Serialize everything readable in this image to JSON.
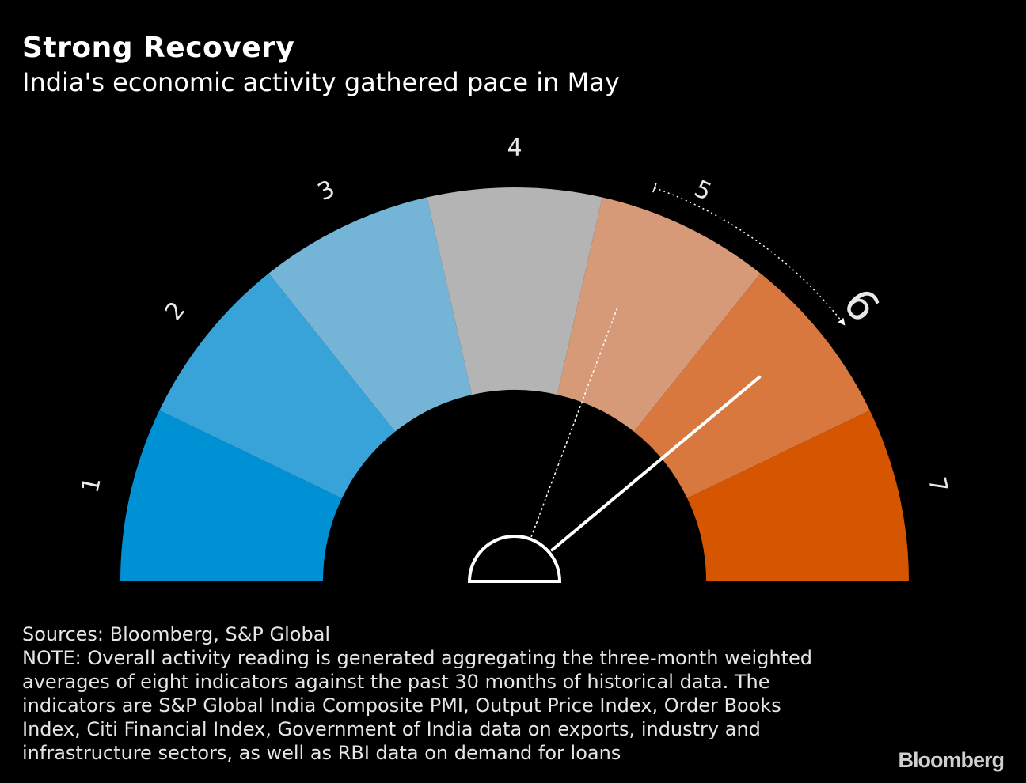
{
  "header": {
    "title": "Strong Recovery",
    "subtitle": "India's economic activity gathered pace in May"
  },
  "chart_data": {
    "type": "gauge",
    "title": "Strong Recovery",
    "subtitle": "India's economic activity gathered pace in May",
    "scale_min": 1,
    "scale_max": 7,
    "segments": [
      {
        "label": "1",
        "color": "#0091d5"
      },
      {
        "label": "2",
        "color": "#38a3d8"
      },
      {
        "label": "3",
        "color": "#74b5d7"
      },
      {
        "label": "4",
        "color": "#b4b4b4"
      },
      {
        "label": "5",
        "color": "#d69a79"
      },
      {
        "label": "6",
        "color": "#d8773e"
      },
      {
        "label": "7",
        "color": "#d65500"
      }
    ],
    "highlighted_label": "6",
    "current_reading": 5.95,
    "previous_reading": 4.8,
    "annotation": "arrow from previous reading to 6"
  },
  "footer": {
    "sources": "Sources: Bloomberg, S&P Global",
    "note_lines": [
      "NOTE: Overall activity reading is generated aggregating the three-month weighted",
      "averages of eight indicators against the past 30 months of historical data. The",
      "indicators are S&P Global India Composite PMI, Output Price Index, Order Books",
      "Index, Citi Financial Index, Government of India data on exports, industry and",
      "infrastructure sectors, as well as RBI data on demand for loans"
    ],
    "brand": "Bloomberg"
  }
}
